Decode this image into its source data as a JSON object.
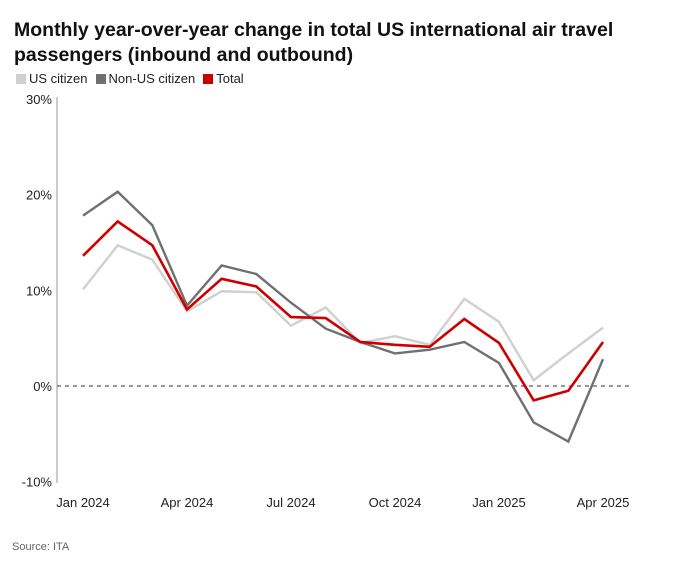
{
  "chart_data": {
    "type": "line",
    "title": "Monthly year-over-year change in total US international air travel passengers (inbound and outbound)",
    "source": "Source: ITA",
    "x": [
      "Jan 2024",
      "Feb 2024",
      "Mar 2024",
      "Apr 2024",
      "May 2024",
      "Jun 2024",
      "Jul 2024",
      "Aug 2024",
      "Sep 2024",
      "Oct 2024",
      "Nov 2024",
      "Dec 2024",
      "Jan 2025",
      "Feb 2025",
      "Mar 2025",
      "Apr 2025"
    ],
    "xticks": [
      "Jan 2024",
      "Apr 2024",
      "Jul 2024",
      "Oct 2024",
      "Jan 2025",
      "Apr 2025"
    ],
    "yticks": [
      "30%",
      "20%",
      "10%",
      "0%",
      "-10%"
    ],
    "ylim": [
      -10,
      30
    ],
    "reference_line": 0,
    "legend_position": "top-left",
    "series": [
      {
        "name": "US citizen",
        "color": "#d0d0d0",
        "values": [
          10.1,
          14.7,
          13.2,
          7.8,
          9.9,
          9.8,
          6.3,
          8.2,
          4.5,
          5.2,
          4.3,
          9.1,
          6.7,
          0.6,
          3.4,
          6.1
        ]
      },
      {
        "name": "Non-US citizen",
        "color": "#707070",
        "values": [
          17.8,
          20.3,
          16.8,
          8.4,
          12.6,
          11.7,
          8.7,
          6.0,
          4.6,
          3.4,
          3.8,
          4.6,
          2.4,
          -3.8,
          -5.8,
          2.8
        ]
      },
      {
        "name": "Total",
        "color": "#cc0000",
        "values": [
          13.6,
          17.2,
          14.7,
          8.0,
          11.2,
          10.4,
          7.2,
          7.1,
          4.6,
          4.3,
          4.1,
          7.0,
          4.5,
          -1.5,
          -0.5,
          4.6
        ]
      }
    ]
  }
}
